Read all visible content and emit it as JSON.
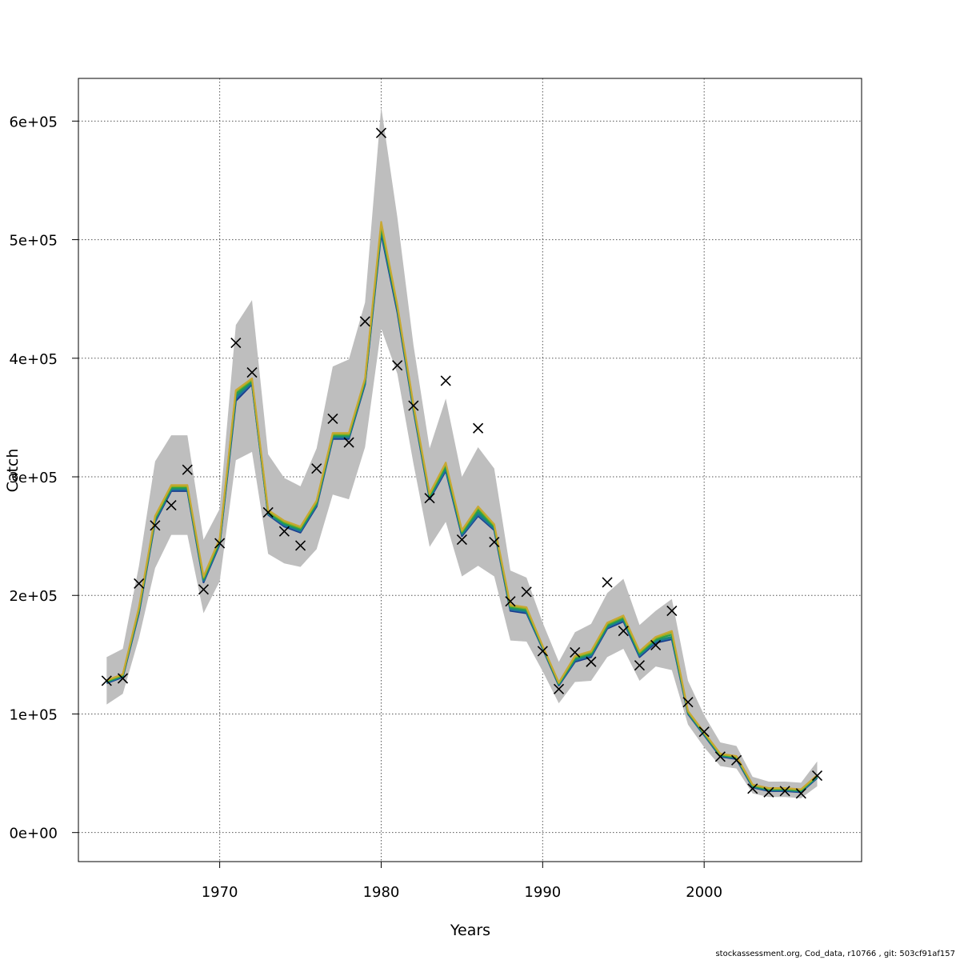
{
  "footer": "stockassessment.org, Cod_data, r10766 , git: 503cf91af157",
  "chart_data": {
    "type": "line",
    "title": "",
    "xlabel": "Years",
    "ylabel": "Catch",
    "xlim": [
      1961.25,
      2009.75
    ],
    "ylim": [
      -24500,
      636000
    ],
    "xticks": [
      1970,
      1980,
      1990,
      2000
    ],
    "yticks": [
      0,
      100000,
      200000,
      300000,
      400000,
      500000,
      600000
    ],
    "ytick_labels": [
      "0e+00",
      "1e+05",
      "2e+05",
      "3e+05",
      "4e+05",
      "5e+05",
      "6e+05"
    ],
    "grid": true,
    "colors": {
      "band": "#bebebe",
      "observed_marker": "#000000",
      "lines": [
        "#1a3a8c",
        "#1f6fa0",
        "#1a8a7a",
        "#2aa04a",
        "#8fb020",
        "#c8a832"
      ]
    },
    "years": [
      1963,
      1964,
      1965,
      1966,
      1967,
      1968,
      1969,
      1970,
      1971,
      1972,
      1973,
      1974,
      1975,
      1976,
      1977,
      1978,
      1979,
      1980,
      1981,
      1982,
      1983,
      1984,
      1985,
      1986,
      1987,
      1988,
      1989,
      1990,
      1991,
      1992,
      1993,
      1994,
      1995,
      1996,
      1997,
      1998,
      1999,
      2000,
      2001,
      2002,
      2003,
      2004,
      2005,
      2006,
      2007
    ],
    "observed": [
      128000,
      130000,
      210000,
      259000,
      276000,
      306000,
      205000,
      244000,
      413000,
      388000,
      270000,
      254000,
      242000,
      307000,
      349000,
      329000,
      431000,
      590000,
      394000,
      360000,
      282000,
      381000,
      247000,
      341000,
      245000,
      195000,
      203000,
      153000,
      121000,
      152000,
      144000,
      211000,
      170000,
      141000,
      158000,
      187000,
      110000,
      85000,
      64000,
      61000,
      37000,
      34000,
      35000,
      33000,
      48000
    ],
    "series": [
      {
        "values": [
          126000,
          131000,
          185000,
          262000,
          288000,
          288000,
          211000,
          243000,
          364000,
          378000,
          268000,
          258000,
          253000,
          275000,
          332000,
          332000,
          378000,
          505000,
          439000,
          356000,
          281000,
          305000,
          250000,
          267000,
          255000,
          187000,
          185000,
          155000,
          124000,
          144000,
          148000,
          172000,
          178000,
          148000,
          160000,
          163000,
          100000,
          82000,
          64000,
          62000,
          38000,
          35000,
          35000,
          34000,
          46000
        ]
      },
      {
        "values": [
          126500,
          131500,
          186000,
          263000,
          289000,
          289000,
          212000,
          244000,
          366000,
          379000,
          268500,
          259000,
          254000,
          276000,
          333000,
          333000,
          379000,
          507000,
          441000,
          357000,
          282000,
          306000,
          251000,
          268000,
          256000,
          188000,
          186000,
          155500,
          124500,
          145000,
          149000,
          173000,
          179000,
          149000,
          161000,
          164000,
          100500,
          82500,
          64500,
          62500,
          38500,
          35500,
          35500,
          34500,
          46500
        ]
      },
      {
        "values": [
          127000,
          132000,
          187000,
          264000,
          290000,
          290000,
          213000,
          245000,
          368000,
          380000,
          269000,
          260000,
          255000,
          277000,
          334000,
          334000,
          380000,
          509000,
          442000,
          358000,
          283000,
          308000,
          252000,
          270000,
          257000,
          189000,
          187000,
          156000,
          125000,
          146000,
          150000,
          174000,
          180000,
          150000,
          162000,
          165000,
          101000,
          83000,
          65000,
          63000,
          39000,
          36000,
          36000,
          35000,
          47000
        ]
      },
      {
        "values": [
          127500,
          132500,
          188000,
          265000,
          291000,
          291000,
          214000,
          246000,
          370000,
          381000,
          270000,
          261000,
          256000,
          278000,
          335000,
          335000,
          381000,
          511000,
          443000,
          359000,
          284000,
          309000,
          253000,
          272000,
          258000,
          190000,
          188000,
          156500,
          125500,
          147000,
          151000,
          175000,
          181000,
          151000,
          163000,
          167000,
          101500,
          83500,
          65500,
          63500,
          39500,
          36500,
          36500,
          35500,
          47500
        ]
      },
      {
        "values": [
          128000,
          133000,
          189000,
          266000,
          292000,
          292000,
          215000,
          247000,
          372000,
          382000,
          271000,
          262000,
          257000,
          279000,
          336000,
          336000,
          382000,
          513000,
          444000,
          360000,
          285000,
          311000,
          254000,
          274000,
          259000,
          191000,
          189000,
          157000,
          126000,
          148000,
          152000,
          176000,
          182000,
          152000,
          164000,
          169000,
          102000,
          84000,
          66000,
          64000,
          40000,
          37000,
          37000,
          36000,
          48000
        ]
      },
      {
        "values": [
          128500,
          133500,
          190000,
          267000,
          293000,
          293000,
          216000,
          248000,
          373000,
          383000,
          272000,
          263000,
          258000,
          280000,
          337000,
          337000,
          383000,
          515000,
          445000,
          361000,
          286000,
          312000,
          255000,
          275000,
          260000,
          192000,
          190000,
          157500,
          126500,
          149000,
          153000,
          177000,
          183000,
          153000,
          165000,
          170000,
          102500,
          84500,
          66500,
          64500,
          40500,
          37500,
          37500,
          36500,
          48500
        ]
      }
    ],
    "band_upper": [
      148000,
      155000,
      225000,
      313000,
      335000,
      335000,
      247000,
      273000,
      428000,
      449000,
      319000,
      299000,
      292000,
      324000,
      393000,
      399000,
      447000,
      612000,
      519000,
      411000,
      324000,
      366000,
      300000,
      325000,
      307000,
      221000,
      215000,
      177000,
      144000,
      169000,
      176000,
      202000,
      214000,
      175000,
      187000,
      197000,
      128000,
      99000,
      76000,
      73000,
      47000,
      43000,
      43000,
      42000,
      60000
    ],
    "band_lower": [
      108000,
      117000,
      164000,
      223000,
      251000,
      251000,
      185000,
      212000,
      314000,
      321000,
      235000,
      227000,
      224000,
      239000,
      285000,
      281000,
      325000,
      425000,
      387000,
      311000,
      241000,
      262000,
      216000,
      225000,
      216000,
      162000,
      161000,
      136000,
      109000,
      127000,
      128000,
      148000,
      155000,
      128000,
      140000,
      137000,
      91000,
      72000,
      56000,
      54000,
      33000,
      30000,
      30000,
      29000,
      39000
    ]
  }
}
